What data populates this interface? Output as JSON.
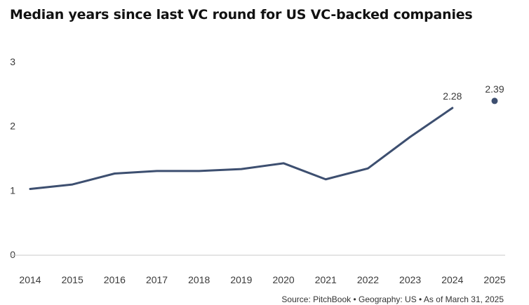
{
  "chart_data": {
    "type": "line",
    "title": "Median years since last VC round for US VC-backed companies",
    "x": [
      "2014",
      "2015",
      "2016",
      "2017",
      "2018",
      "2019",
      "2020",
      "2021",
      "2022",
      "2023",
      "2024",
      "2025"
    ],
    "series": [
      {
        "values": [
          1.02,
          1.09,
          1.26,
          1.3,
          1.3,
          1.33,
          1.42,
          1.17,
          1.34,
          1.83,
          2.28,
          null
        ],
        "color": "#3d4f70",
        "style": "line",
        "data_labels": {
          "2024": "2.28"
        }
      },
      {
        "values": [
          null,
          null,
          null,
          null,
          null,
          null,
          null,
          null,
          null,
          null,
          null,
          2.39
        ],
        "color": "#3d4f70",
        "style": "point",
        "data_labels": {
          "2025": "2.39"
        }
      }
    ],
    "yticks": [
      "0",
      "1",
      "2",
      "3"
    ],
    "ylim": [
      0,
      3
    ],
    "grid": false,
    "baseline_color": "#c8c8c8"
  },
  "source": "Source: PitchBook  •  Geography: US  •  As of March 31, 2025"
}
